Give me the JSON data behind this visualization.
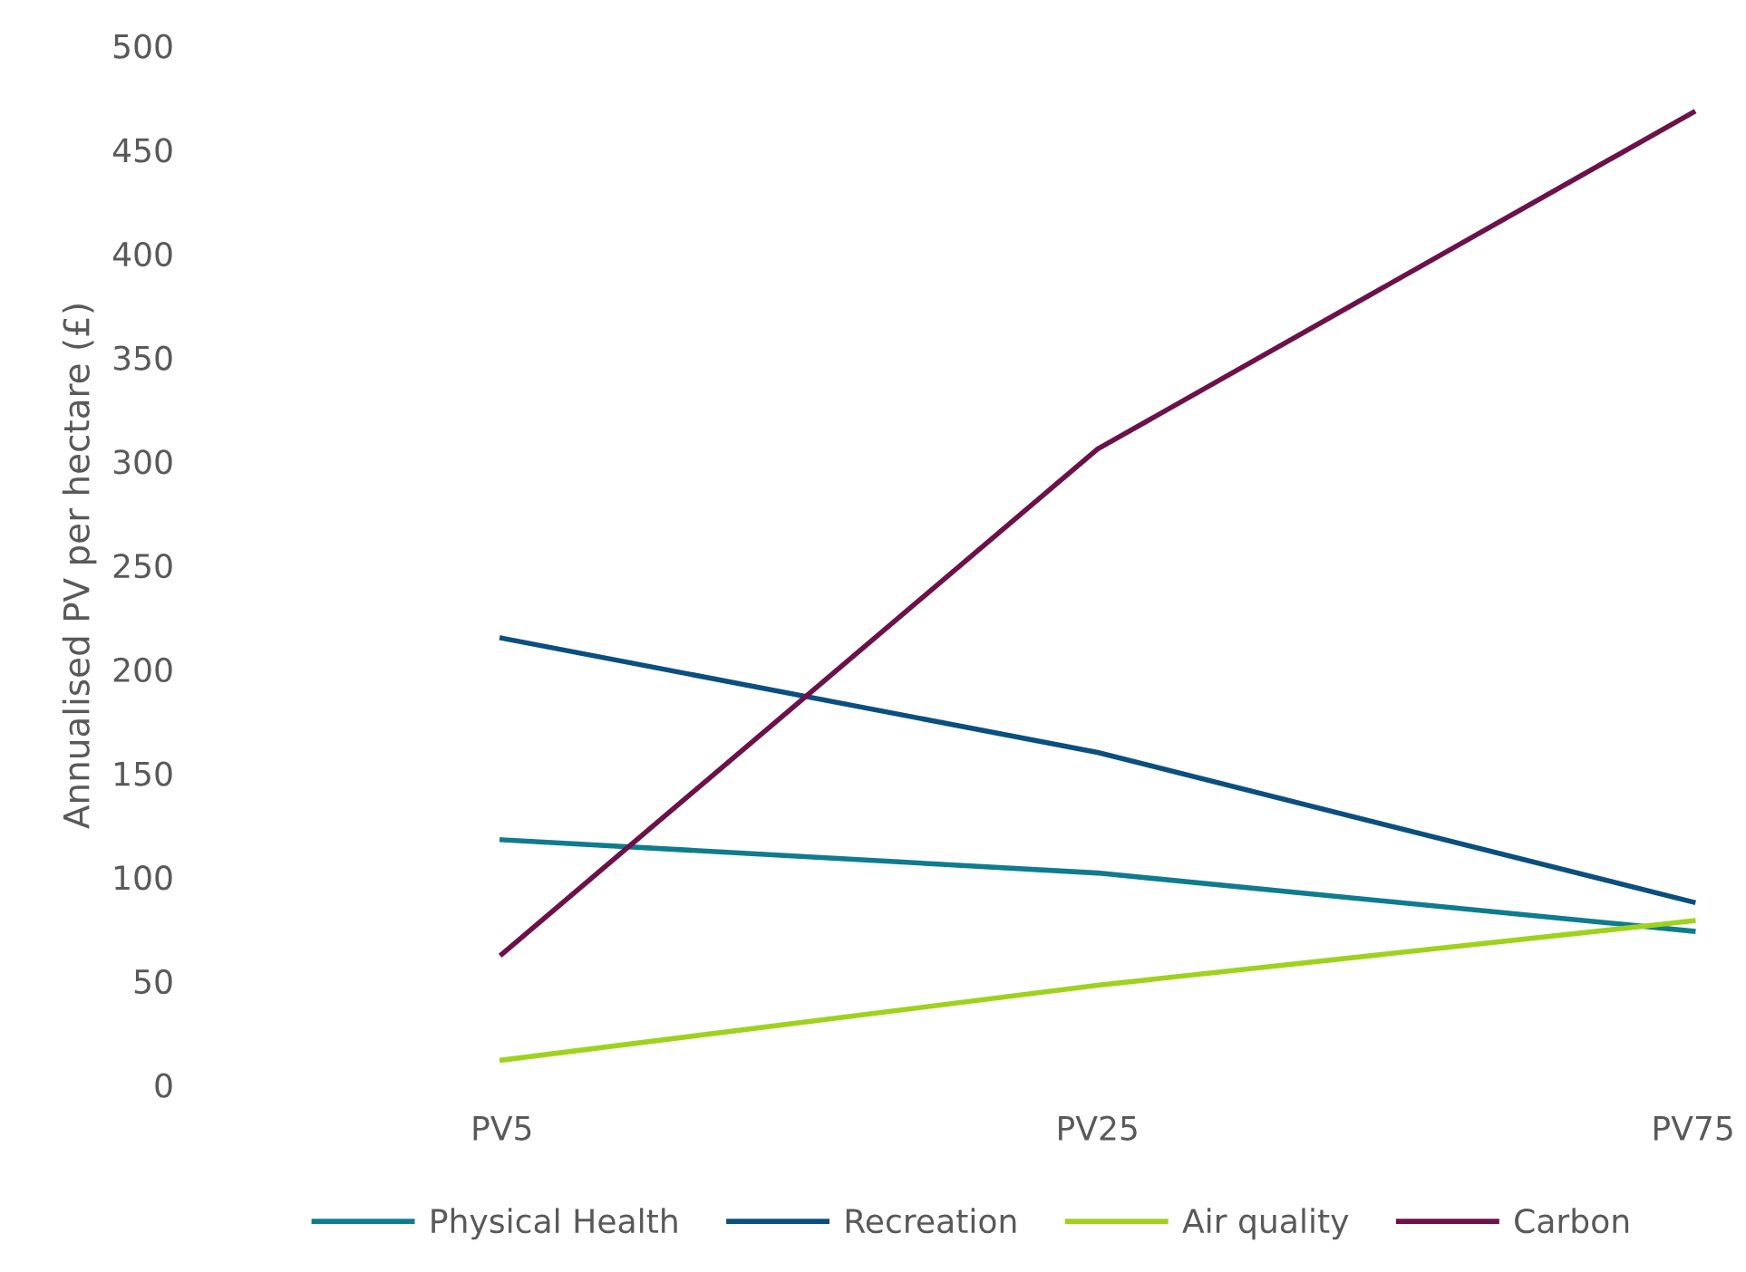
{
  "chart_data": {
    "type": "line",
    "ylabel": "Annualised PV per hectare (£)",
    "categories": [
      "PV5",
      "PV25",
      "PV75"
    ],
    "series": [
      {
        "name": "Physical Health",
        "color": "#0e7c8e",
        "values": [
          118,
          102,
          74
        ]
      },
      {
        "name": "Recreation",
        "color": "#0a4f7f",
        "values": [
          215,
          160,
          88
        ]
      },
      {
        "name": "Air quality",
        "color": "#9fd21c",
        "values": [
          12,
          48,
          79
        ]
      },
      {
        "name": "Carbon",
        "color": "#6d1149",
        "values": [
          63,
          306,
          468
        ]
      }
    ],
    "ylim": [
      0,
      500
    ],
    "yticks": [
      0,
      50,
      100,
      150,
      200,
      250,
      300,
      350,
      400,
      450,
      500
    ],
    "grid": false,
    "legend": "bottom",
    "marker": "none",
    "line_style": "solid"
  }
}
